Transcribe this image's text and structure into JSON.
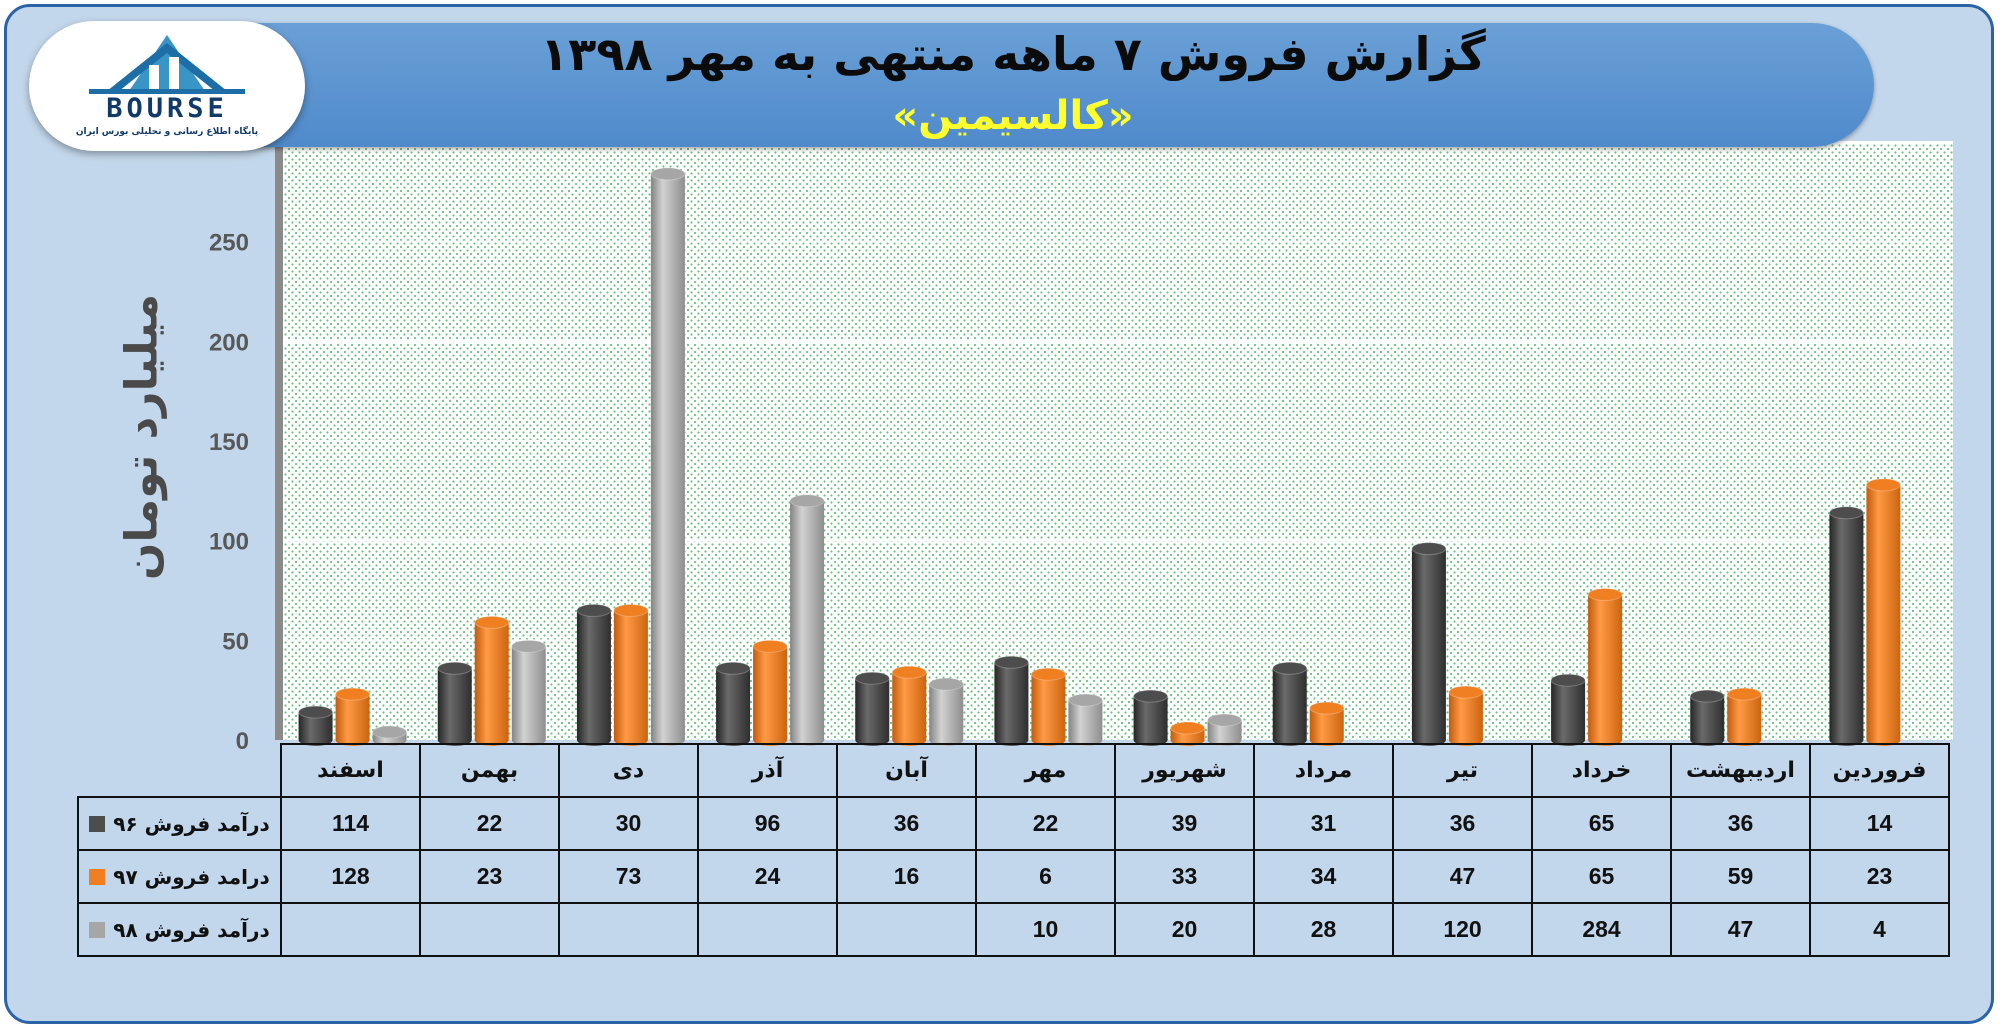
{
  "header": {
    "title": "گزارش فروش ۷ ماهه منتهی به مهر ۱۳۹۸",
    "subtitle": "«کالسیمین»"
  },
  "logo": {
    "word": "BOURSE",
    "tagline": "پایگاه اطلاع رسانی و تحلیلی بورس ایران"
  },
  "colors": {
    "series_96": "#4d4d4d",
    "series_97": "#f07f22",
    "series_98": "#a6a6a6",
    "background": "#c3d7ec",
    "title_banner": "#5b93cf",
    "subtitle": "#ffff2e"
  },
  "chart_data": {
    "type": "bar",
    "title": "گزارش فروش ۷ ماهه منتهی به مهر ۱۳۹۸",
    "subtitle": "«کالسیمین»",
    "ylabel": "میلیارد تومان",
    "xlabel": "",
    "ylim": [
      0,
      300
    ],
    "yticks": [
      "0",
      "50",
      "100",
      "150",
      "200",
      "250",
      "300"
    ],
    "grid": true,
    "legend_placement": "table-left",
    "categories": [
      "فروردین",
      "اردیبهشت",
      "خرداد",
      "تیر",
      "مرداد",
      "شهریور",
      "مهر",
      "آبان",
      "آذر",
      "دی",
      "بهمن",
      "اسفند"
    ],
    "series": [
      {
        "name": "درآمد فروش ۹۶",
        "values": [
          14,
          36,
          65,
          36,
          31,
          39,
          22,
          36,
          96,
          30,
          22,
          114
        ]
      },
      {
        "name": "درامد فروش ۹۷",
        "values": [
          23,
          59,
          65,
          47,
          34,
          33,
          6,
          16,
          24,
          73,
          23,
          128
        ]
      },
      {
        "name": "درآمد فروش ۹۸",
        "values": [
          4,
          47,
          284,
          120,
          28,
          20,
          10,
          null,
          null,
          null,
          null,
          null
        ]
      }
    ]
  }
}
